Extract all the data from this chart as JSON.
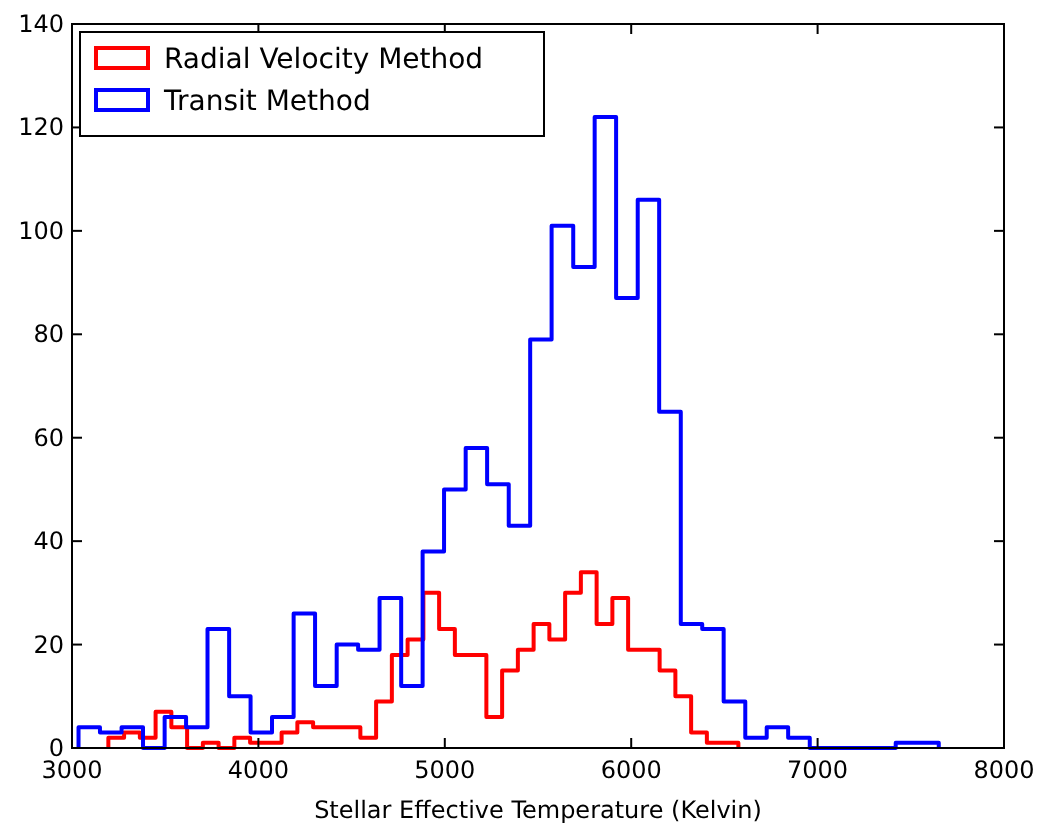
{
  "chart_data": {
    "type": "step",
    "xlabel": "Stellar Effective Temperature (Kelvin)",
    "xlim": [
      3000,
      8000
    ],
    "xticks": [
      3000,
      4000,
      5000,
      6000,
      7000,
      8000
    ],
    "ylim": [
      0,
      140
    ],
    "yticks": [
      0,
      20,
      40,
      60,
      80,
      100,
      120,
      140
    ],
    "grid": false,
    "legend": "top left",
    "series": [
      {
        "name": "Radial Velocity Method",
        "color": "#ff0000",
        "x": [
          3195,
          3195,
          3279.5,
          3364,
          3448.5,
          3533,
          3617.5,
          3702,
          3786.5,
          3871,
          3955.5,
          4040,
          4124.5,
          4209,
          4293.5,
          4378,
          4462.5,
          4547,
          4631.5,
          4716,
          4800.5,
          4885,
          4969.5,
          5054,
          5138.5,
          5223,
          5307.5,
          5392,
          5476.5,
          5561,
          5645.5,
          5730,
          5814.5,
          5899,
          5983.5,
          6068,
          6152.5,
          6237,
          6321.5,
          6406,
          6490.5,
          6575
        ],
        "values": [
          0,
          2,
          3,
          2,
          7,
          4,
          0,
          1,
          0,
          2,
          1,
          1,
          3,
          5,
          4,
          4,
          4,
          2,
          9,
          18,
          21,
          30,
          23,
          18,
          18,
          6,
          15,
          19,
          24,
          21,
          30,
          34,
          24,
          29,
          19,
          19,
          15,
          10,
          3,
          1,
          1,
          0
        ]
      },
      {
        "name": "Transit Method",
        "color": "#0000ff",
        "x": [
          3035,
          3035,
          3150,
          3266,
          3381,
          3497,
          3612,
          3727,
          3843,
          3958,
          4073,
          4189,
          4304,
          4420,
          4535,
          4650,
          4766,
          4881,
          4996,
          5112,
          5227,
          5343,
          5458,
          5573,
          5689,
          5804,
          5919,
          6035,
          6150,
          6266,
          6381,
          6496,
          6612,
          6727,
          6842,
          6958,
          7073,
          7189,
          7304,
          7419,
          7535,
          7650
        ],
        "values": [
          0,
          4,
          3,
          4,
          0,
          6,
          4,
          23,
          10,
          3,
          6,
          26,
          12,
          20,
          19,
          29,
          12,
          38,
          50,
          58,
          51,
          43,
          79,
          101,
          93,
          122,
          87,
          106,
          65,
          24,
          23,
          9,
          2,
          4,
          2,
          0,
          0,
          0,
          0,
          1,
          1,
          0
        ]
      }
    ]
  }
}
